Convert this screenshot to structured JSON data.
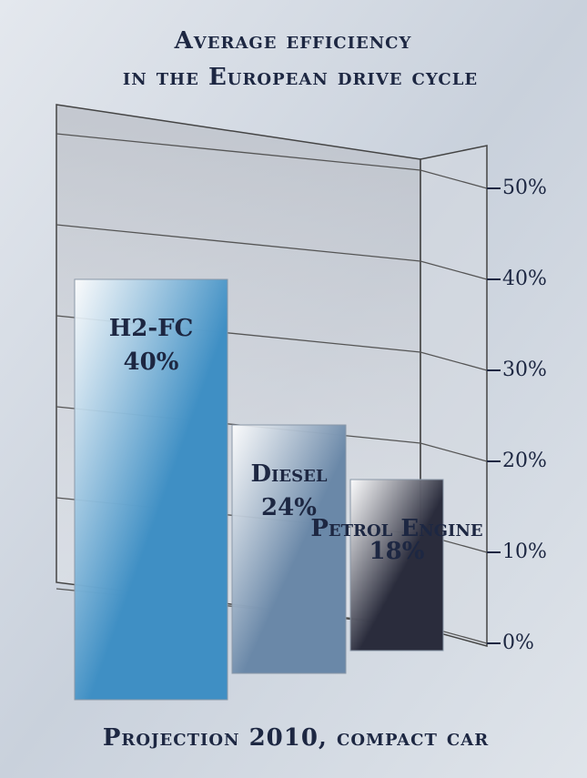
{
  "chart_data": {
    "type": "bar",
    "title": "Average efficiency",
    "subtitle": "in the European drive cycle",
    "footer": "Projection 2010, compact car",
    "categories": [
      "H2-FC",
      "Diesel",
      "Petrol Engine"
    ],
    "values": [
      40,
      24,
      18
    ],
    "value_labels": [
      "40%",
      "24%",
      "18%"
    ],
    "colors": [
      "#3f8fc4",
      "#6a88a8",
      "#2a2c3c"
    ],
    "ylim": [
      0,
      50
    ],
    "yticks": [
      {
        "value": 0,
        "label": "0%"
      },
      {
        "value": 10,
        "label": "10%"
      },
      {
        "value": 20,
        "label": "20%"
      },
      {
        "value": 30,
        "label": "30%"
      },
      {
        "value": 40,
        "label": "40%"
      },
      {
        "value": 50,
        "label": "50%"
      }
    ],
    "grid": true
  }
}
